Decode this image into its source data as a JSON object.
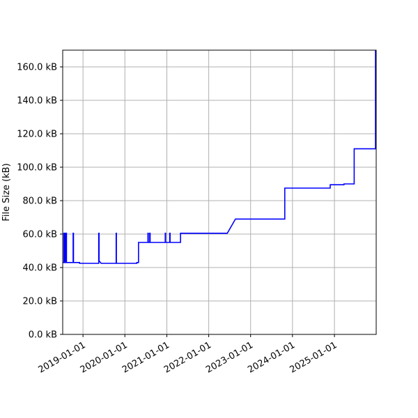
{
  "chart_data": {
    "type": "line",
    "ylabel": "File Size (kB)",
    "xlabel": "",
    "title": "",
    "grid": true,
    "ylim": [
      0,
      170
    ],
    "xlim": [
      "2018-07-08",
      "2025-12-31"
    ],
    "y_ticks": [
      0,
      20,
      40,
      60,
      80,
      100,
      120,
      140,
      160
    ],
    "y_tick_labels": [
      "0.0 kB",
      "20.0 kB",
      "40.0 kB",
      "60.0 kB",
      "80.0 kB",
      "100.0 kB",
      "120.0 kB",
      "140.0 kB",
      "160.0 kB"
    ],
    "x_ticks": [
      "2019-01-01",
      "2020-01-01",
      "2021-01-01",
      "2022-01-01",
      "2023-01-01",
      "2024-01-01",
      "2025-01-01"
    ],
    "x_tick_labels": [
      "2019-01-01",
      "2020-01-01",
      "2021-01-01",
      "2022-01-01",
      "2023-01-01",
      "2024-01-01",
      "2025-01-01"
    ],
    "series": [
      {
        "color": "#0000ff",
        "points": [
          [
            "2018-07-08",
            43.0
          ],
          [
            "2018-07-18",
            43.0
          ],
          [
            "2018-07-18",
            60.5
          ],
          [
            "2018-07-24",
            60.5
          ],
          [
            "2018-07-24",
            43.0
          ],
          [
            "2018-07-28",
            43.0
          ],
          [
            "2018-07-28",
            60.5
          ],
          [
            "2018-08-02",
            60.5
          ],
          [
            "2018-08-02",
            43.0
          ],
          [
            "2018-08-05",
            43.0
          ],
          [
            "2018-08-05",
            60.5
          ],
          [
            "2018-08-10",
            60.5
          ],
          [
            "2018-08-10",
            43.0
          ],
          [
            "2018-10-07",
            43.0
          ],
          [
            "2018-10-07",
            60.5
          ],
          [
            "2018-10-10",
            60.5
          ],
          [
            "2018-10-10",
            43.0
          ],
          [
            "2018-12-02",
            43.0
          ],
          [
            "2018-12-02",
            42.5
          ],
          [
            "2019-05-18",
            42.5
          ],
          [
            "2019-05-18",
            60.5
          ],
          [
            "2019-05-21",
            60.5
          ],
          [
            "2019-05-21",
            44.0
          ],
          [
            "2019-06-08",
            42.5
          ],
          [
            "2019-10-17",
            42.5
          ],
          [
            "2019-10-17",
            60.5
          ],
          [
            "2019-10-19",
            60.5
          ],
          [
            "2019-10-19",
            42.5
          ],
          [
            "2020-04-14",
            42.5
          ],
          [
            "2020-04-14",
            43.0
          ],
          [
            "2020-04-29",
            43.0
          ],
          [
            "2020-04-29",
            55.0
          ],
          [
            "2020-07-20",
            55.0
          ],
          [
            "2020-07-20",
            60.5
          ],
          [
            "2020-07-23",
            60.5
          ],
          [
            "2020-07-23",
            55.0
          ],
          [
            "2020-08-05",
            55.0
          ],
          [
            "2020-08-05",
            60.5
          ],
          [
            "2020-08-08",
            60.5
          ],
          [
            "2020-08-08",
            55.0
          ],
          [
            "2020-12-18",
            55.0
          ],
          [
            "2020-12-18",
            60.5
          ],
          [
            "2020-12-21",
            60.5
          ],
          [
            "2020-12-21",
            55.0
          ],
          [
            "2021-01-26",
            55.0
          ],
          [
            "2021-01-26",
            60.5
          ],
          [
            "2021-01-29",
            60.5
          ],
          [
            "2021-01-29",
            55.0
          ],
          [
            "2021-04-30",
            55.0
          ],
          [
            "2021-04-30",
            60.5
          ],
          [
            "2022-06-12",
            60.5
          ],
          [
            "2022-08-22",
            69.0
          ],
          [
            "2023-10-26",
            69.0
          ],
          [
            "2023-10-26",
            87.5
          ],
          [
            "2024-11-25",
            87.5
          ],
          [
            "2024-11-25",
            89.5
          ],
          [
            "2025-03-25",
            89.5
          ],
          [
            "2025-03-25",
            90.0
          ],
          [
            "2025-06-22",
            90.0
          ],
          [
            "2025-06-22",
            111.0
          ],
          [
            "2025-12-25",
            111.0
          ],
          [
            "2025-12-25",
            170.0
          ]
        ]
      }
    ]
  }
}
